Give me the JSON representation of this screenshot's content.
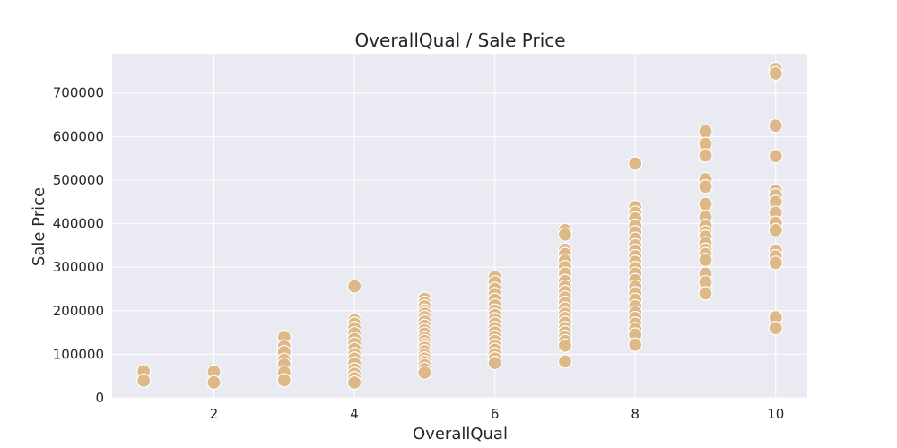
{
  "chart_data": {
    "type": "scatter",
    "title": "OverallQual / Sale Price",
    "xlabel": "OverallQual",
    "ylabel": "Sale Price",
    "xlim": [
      0.55,
      10.45
    ],
    "ylim": [
      0,
      790000
    ],
    "xticks": [
      2,
      4,
      6,
      8,
      10
    ],
    "yticks": [
      0,
      100000,
      200000,
      300000,
      400000,
      500000,
      600000,
      700000
    ],
    "grid": true,
    "background": "#eaeaf2",
    "grid_color": "#ffffff",
    "marker_color": "#deb887",
    "marker_edge_color": "#ffffff",
    "points": [
      {
        "x": 1,
        "y": 61000
      },
      {
        "x": 1,
        "y": 39300
      },
      {
        "x": 2,
        "y": 60000
      },
      {
        "x": 2,
        "y": 35311
      },
      {
        "x": 3,
        "y": 139600
      },
      {
        "x": 3,
        "y": 118000
      },
      {
        "x": 3,
        "y": 105000
      },
      {
        "x": 3,
        "y": 87000
      },
      {
        "x": 3,
        "y": 76500
      },
      {
        "x": 3,
        "y": 58500
      },
      {
        "x": 3,
        "y": 40000
      },
      {
        "x": 4,
        "y": 256000
      },
      {
        "x": 4,
        "y": 178000
      },
      {
        "x": 4,
        "y": 170000
      },
      {
        "x": 4,
        "y": 160000
      },
      {
        "x": 4,
        "y": 148000
      },
      {
        "x": 4,
        "y": 135000
      },
      {
        "x": 4,
        "y": 124000
      },
      {
        "x": 4,
        "y": 112000
      },
      {
        "x": 4,
        "y": 100000
      },
      {
        "x": 4,
        "y": 90000
      },
      {
        "x": 4,
        "y": 79000
      },
      {
        "x": 4,
        "y": 65000
      },
      {
        "x": 4,
        "y": 55000
      },
      {
        "x": 4,
        "y": 45000
      },
      {
        "x": 4,
        "y": 34900
      },
      {
        "x": 5,
        "y": 227000
      },
      {
        "x": 5,
        "y": 218000
      },
      {
        "x": 5,
        "y": 210000
      },
      {
        "x": 5,
        "y": 200000
      },
      {
        "x": 5,
        "y": 193000
      },
      {
        "x": 5,
        "y": 185000
      },
      {
        "x": 5,
        "y": 175000
      },
      {
        "x": 5,
        "y": 165000
      },
      {
        "x": 5,
        "y": 155000
      },
      {
        "x": 5,
        "y": 147000
      },
      {
        "x": 5,
        "y": 138000
      },
      {
        "x": 5,
        "y": 130000
      },
      {
        "x": 5,
        "y": 122000
      },
      {
        "x": 5,
        "y": 115000
      },
      {
        "x": 5,
        "y": 107000
      },
      {
        "x": 5,
        "y": 98000
      },
      {
        "x": 5,
        "y": 90000
      },
      {
        "x": 5,
        "y": 82000
      },
      {
        "x": 5,
        "y": 75000
      },
      {
        "x": 5,
        "y": 66000
      },
      {
        "x": 5,
        "y": 58000
      },
      {
        "x": 6,
        "y": 277000
      },
      {
        "x": 6,
        "y": 265000
      },
      {
        "x": 6,
        "y": 250000
      },
      {
        "x": 6,
        "y": 238000
      },
      {
        "x": 6,
        "y": 225000
      },
      {
        "x": 6,
        "y": 212000
      },
      {
        "x": 6,
        "y": 200000
      },
      {
        "x": 6,
        "y": 190000
      },
      {
        "x": 6,
        "y": 180000
      },
      {
        "x": 6,
        "y": 170000
      },
      {
        "x": 6,
        "y": 160000
      },
      {
        "x": 6,
        "y": 150000
      },
      {
        "x": 6,
        "y": 140000
      },
      {
        "x": 6,
        "y": 130000
      },
      {
        "x": 6,
        "y": 120000
      },
      {
        "x": 6,
        "y": 110000
      },
      {
        "x": 6,
        "y": 100000
      },
      {
        "x": 6,
        "y": 90000
      },
      {
        "x": 6,
        "y": 80000
      },
      {
        "x": 7,
        "y": 385000
      },
      {
        "x": 7,
        "y": 375000
      },
      {
        "x": 7,
        "y": 340000
      },
      {
        "x": 7,
        "y": 330000
      },
      {
        "x": 7,
        "y": 315000
      },
      {
        "x": 7,
        "y": 300000
      },
      {
        "x": 7,
        "y": 285000
      },
      {
        "x": 7,
        "y": 268000
      },
      {
        "x": 7,
        "y": 255000
      },
      {
        "x": 7,
        "y": 243000
      },
      {
        "x": 7,
        "y": 230000
      },
      {
        "x": 7,
        "y": 218000
      },
      {
        "x": 7,
        "y": 205000
      },
      {
        "x": 7,
        "y": 193000
      },
      {
        "x": 7,
        "y": 183000
      },
      {
        "x": 7,
        "y": 172000
      },
      {
        "x": 7,
        "y": 160000
      },
      {
        "x": 7,
        "y": 150000
      },
      {
        "x": 7,
        "y": 140000
      },
      {
        "x": 7,
        "y": 130000
      },
      {
        "x": 7,
        "y": 120000
      },
      {
        "x": 7,
        "y": 83500
      },
      {
        "x": 8,
        "y": 538000
      },
      {
        "x": 8,
        "y": 438000
      },
      {
        "x": 8,
        "y": 425000
      },
      {
        "x": 8,
        "y": 412000
      },
      {
        "x": 8,
        "y": 395000
      },
      {
        "x": 8,
        "y": 380000
      },
      {
        "x": 8,
        "y": 365000
      },
      {
        "x": 8,
        "y": 350000
      },
      {
        "x": 8,
        "y": 338000
      },
      {
        "x": 8,
        "y": 325000
      },
      {
        "x": 8,
        "y": 312000
      },
      {
        "x": 8,
        "y": 298000
      },
      {
        "x": 8,
        "y": 285000
      },
      {
        "x": 8,
        "y": 270000
      },
      {
        "x": 8,
        "y": 255000
      },
      {
        "x": 8,
        "y": 240000
      },
      {
        "x": 8,
        "y": 225000
      },
      {
        "x": 8,
        "y": 210000
      },
      {
        "x": 8,
        "y": 196000
      },
      {
        "x": 8,
        "y": 183000
      },
      {
        "x": 8,
        "y": 170000
      },
      {
        "x": 8,
        "y": 158000
      },
      {
        "x": 8,
        "y": 145000
      },
      {
        "x": 8,
        "y": 122000
      },
      {
        "x": 9,
        "y": 611657
      },
      {
        "x": 9,
        "y": 582933
      },
      {
        "x": 9,
        "y": 556581
      },
      {
        "x": 9,
        "y": 501837
      },
      {
        "x": 9,
        "y": 485000
      },
      {
        "x": 9,
        "y": 445000
      },
      {
        "x": 9,
        "y": 415000
      },
      {
        "x": 9,
        "y": 395000
      },
      {
        "x": 9,
        "y": 380000
      },
      {
        "x": 9,
        "y": 370000
      },
      {
        "x": 9,
        "y": 355000
      },
      {
        "x": 9,
        "y": 340000
      },
      {
        "x": 9,
        "y": 330000
      },
      {
        "x": 9,
        "y": 317000
      },
      {
        "x": 9,
        "y": 285000
      },
      {
        "x": 9,
        "y": 265000
      },
      {
        "x": 9,
        "y": 240000
      },
      {
        "x": 10,
        "y": 755000
      },
      {
        "x": 10,
        "y": 745000
      },
      {
        "x": 10,
        "y": 625000
      },
      {
        "x": 10,
        "y": 555000
      },
      {
        "x": 10,
        "y": 475000
      },
      {
        "x": 10,
        "y": 465000
      },
      {
        "x": 10,
        "y": 450000
      },
      {
        "x": 10,
        "y": 425000
      },
      {
        "x": 10,
        "y": 402000
      },
      {
        "x": 10,
        "y": 385000
      },
      {
        "x": 10,
        "y": 338000
      },
      {
        "x": 10,
        "y": 325000
      },
      {
        "x": 10,
        "y": 310000
      },
      {
        "x": 10,
        "y": 184750
      },
      {
        "x": 10,
        "y": 160000
      }
    ]
  }
}
